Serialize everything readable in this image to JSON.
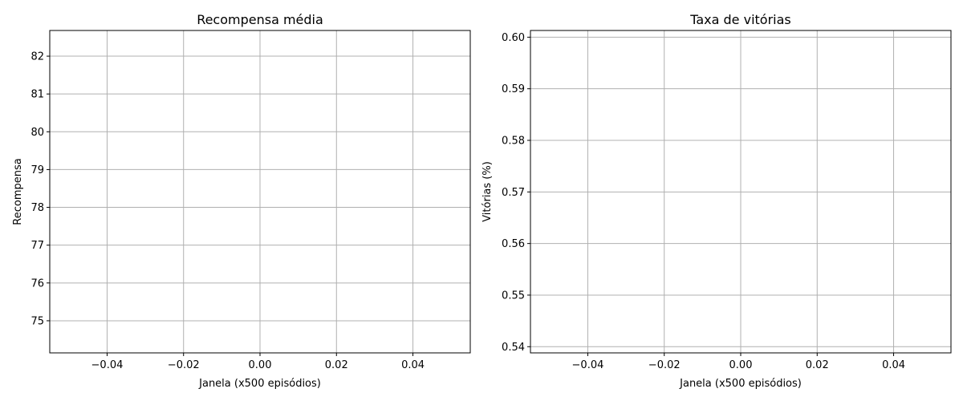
{
  "chart_data": [
    {
      "type": "line",
      "title": "Recompensa média",
      "xlabel": "Janela (x500 episódios)",
      "ylabel": "Recompensa",
      "xlim": [
        -0.055,
        0.055
      ],
      "ylim": [
        74.15,
        82.68
      ],
      "xticks": [
        -0.04,
        -0.02,
        0.0,
        0.02,
        0.04
      ],
      "xtick_labels": [
        "−0.04",
        "−0.02",
        "0.00",
        "0.02",
        "0.04"
      ],
      "yticks": [
        75,
        76,
        77,
        78,
        79,
        80,
        81,
        82
      ],
      "ytick_labels": [
        "75",
        "76",
        "77",
        "78",
        "79",
        "80",
        "81",
        "82"
      ],
      "grid": true,
      "series": []
    },
    {
      "type": "line",
      "title": "Taxa de vitórias",
      "xlabel": "Janela (x500 episódios)",
      "ylabel": "Vitórias (%)",
      "xlim": [
        -0.055,
        0.055
      ],
      "ylim": [
        0.5388,
        0.6013
      ],
      "xticks": [
        -0.04,
        -0.02,
        0.0,
        0.02,
        0.04
      ],
      "xtick_labels": [
        "−0.04",
        "−0.02",
        "0.00",
        "0.02",
        "0.04"
      ],
      "yticks": [
        0.54,
        0.55,
        0.56,
        0.57,
        0.58,
        0.59,
        0.6
      ],
      "ytick_labels": [
        "0.54",
        "0.55",
        "0.56",
        "0.57",
        "0.58",
        "0.59",
        "0.60"
      ],
      "grid": true,
      "series": []
    }
  ]
}
